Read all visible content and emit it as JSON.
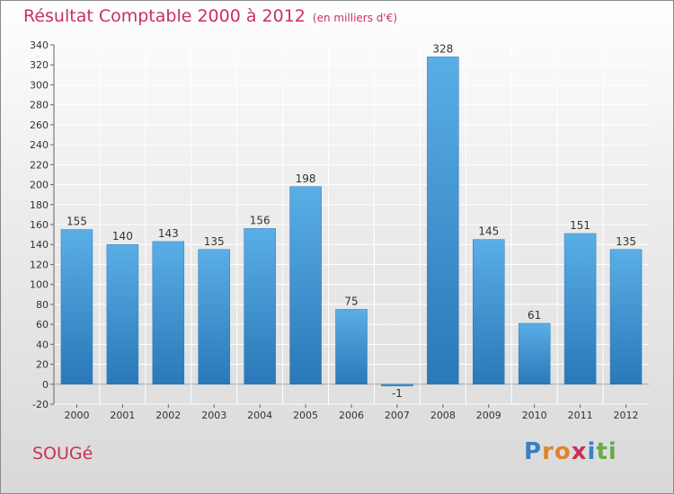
{
  "title": "Résultat Comptable 2000 à 2012",
  "unit_note": "(en milliers d'€)",
  "place": "SOUGé",
  "logo": {
    "letters": [
      "P",
      "r",
      "o",
      "x",
      "i",
      "t",
      "i"
    ],
    "colors": [
      "#3a7fc4",
      "#e0832a",
      "#e0832a",
      "#c8325a",
      "#3a7fc4",
      "#6aa94a",
      "#6aa94a"
    ]
  },
  "chart_data": {
    "type": "bar",
    "title": "Résultat Comptable 2000 à 2012",
    "ylabel": "(en milliers d'€)",
    "xlabel": "",
    "categories": [
      "2000",
      "2001",
      "2002",
      "2003",
      "2004",
      "2005",
      "2006",
      "2007",
      "2008",
      "2009",
      "2010",
      "2011",
      "2012"
    ],
    "values": [
      155,
      140,
      143,
      135,
      156,
      198,
      75,
      -1,
      328,
      145,
      61,
      151,
      135
    ],
    "ylim": [
      -20,
      340
    ],
    "yticks": [
      -20,
      0,
      20,
      40,
      60,
      80,
      100,
      120,
      140,
      160,
      180,
      200,
      220,
      240,
      260,
      280,
      300,
      320,
      340
    ],
    "grid": true,
    "bar_color": "#4a9fdc"
  }
}
